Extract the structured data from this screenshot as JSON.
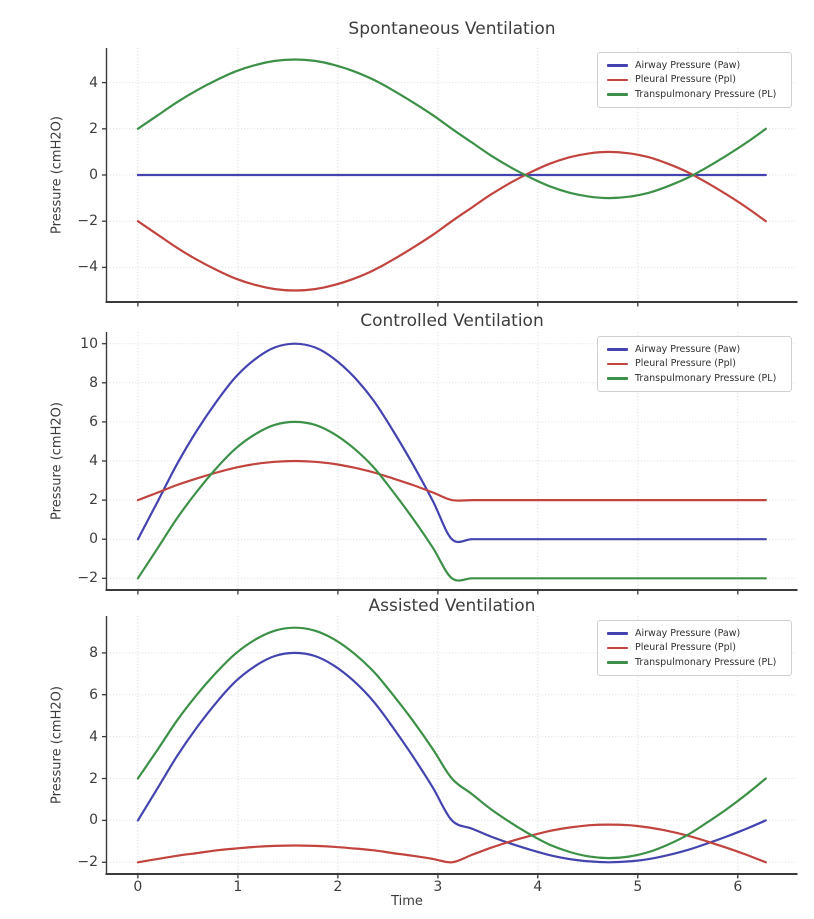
{
  "figure": {
    "background": "#ffffff",
    "xlabel": "Time"
  },
  "chart_data": [
    {
      "type": "line",
      "title": "Spontaneous Ventilation",
      "ylabel": "Pressure (cmH2O)",
      "xlabel": "Time",
      "xlim": [
        -0.314,
        6.597
      ],
      "ylim": [
        -5.5,
        5.5
      ],
      "xticks": [
        0,
        1,
        2,
        3,
        4,
        5,
        6
      ],
      "yticks": [
        -4,
        -2,
        0,
        2,
        4
      ],
      "show_x_tick_labels": false,
      "grid": true,
      "legend_position": "upper right",
      "x": [
        0,
        0.2,
        0.39,
        0.59,
        0.79,
        0.98,
        1.18,
        1.37,
        1.57,
        1.77,
        1.96,
        2.16,
        2.36,
        2.55,
        2.75,
        2.95,
        3.14,
        3.34,
        3.53,
        3.73,
        3.93,
        4.12,
        4.32,
        4.52,
        4.71,
        4.91,
        5.11,
        5.3,
        5.5,
        5.69,
        5.89,
        6.09,
        6.28
      ],
      "series": [
        {
          "name": "Airway Pressure (Paw)",
          "color": "#4444b0",
          "y": [
            0,
            0,
            0,
            0,
            0,
            0,
            0,
            0,
            0,
            0,
            0,
            0,
            0,
            0,
            0,
            0,
            0,
            0,
            0,
            0,
            0,
            0,
            0,
            0,
            0,
            0,
            0,
            0,
            0,
            0,
            0,
            0,
            0
          ]
        },
        {
          "name": "Pleural Pressure (Ppl)",
          "color": "#c2443f",
          "y": [
            -2,
            -2.59,
            -3.15,
            -3.67,
            -4.12,
            -4.49,
            -4.77,
            -4.94,
            -5,
            -4.94,
            -4.77,
            -4.49,
            -4.12,
            -3.67,
            -3.15,
            -2.59,
            -2,
            -1.41,
            -0.85,
            -0.33,
            0.12,
            0.49,
            0.77,
            0.94,
            1,
            0.94,
            0.77,
            0.49,
            0.12,
            -0.33,
            -0.85,
            -1.41,
            -2
          ]
        },
        {
          "name": "Transpulmonary Pressure (PL)",
          "color": "#3c9047",
          "y": [
            2,
            2.59,
            3.15,
            3.67,
            4.12,
            4.49,
            4.77,
            4.94,
            5,
            4.94,
            4.77,
            4.49,
            4.12,
            3.67,
            3.15,
            2.59,
            2,
            1.41,
            0.85,
            0.33,
            -0.12,
            -0.49,
            -0.77,
            -0.94,
            -1,
            -0.94,
            -0.77,
            -0.49,
            -0.12,
            0.33,
            0.85,
            1.41,
            2
          ]
        }
      ]
    },
    {
      "type": "line",
      "title": "Controlled Ventilation",
      "ylabel": "Pressure (cmH2O)",
      "xlabel": "Time",
      "xlim": [
        -0.314,
        6.597
      ],
      "ylim": [
        -2.6,
        10.6
      ],
      "xticks": [
        0,
        1,
        2,
        3,
        4,
        5,
        6
      ],
      "yticks": [
        -2,
        0,
        2,
        4,
        6,
        8,
        10
      ],
      "show_x_tick_labels": false,
      "grid": true,
      "legend_position": "upper right",
      "x": [
        0,
        0.2,
        0.39,
        0.59,
        0.79,
        0.98,
        1.18,
        1.37,
        1.57,
        1.77,
        1.96,
        2.16,
        2.36,
        2.55,
        2.75,
        2.95,
        3.14,
        3.34,
        3.53,
        3.73,
        3.93,
        4.12,
        4.32,
        4.52,
        4.71,
        4.91,
        5.11,
        5.3,
        5.5,
        5.69,
        5.89,
        6.09,
        6.28
      ],
      "series": [
        {
          "name": "Airway Pressure (Paw)",
          "color": "#4444b0",
          "y": [
            0,
            1.95,
            3.83,
            5.56,
            7.07,
            8.31,
            9.24,
            9.81,
            10,
            9.81,
            9.24,
            8.31,
            7.07,
            5.56,
            3.83,
            1.95,
            0,
            0,
            0,
            0,
            0,
            0,
            0,
            0,
            0,
            0,
            0,
            0,
            0,
            0,
            0,
            0,
            0
          ]
        },
        {
          "name": "Pleural Pressure (Ppl)",
          "color": "#c2443f",
          "y": [
            2,
            2.39,
            2.77,
            3.11,
            3.41,
            3.66,
            3.85,
            3.96,
            4,
            3.96,
            3.85,
            3.66,
            3.41,
            3.11,
            2.77,
            2.39,
            2,
            2,
            2,
            2,
            2,
            2,
            2,
            2,
            2,
            2,
            2,
            2,
            2,
            2,
            2,
            2,
            2
          ]
        },
        {
          "name": "Transpulmonary Pressure (PL)",
          "color": "#3c9047",
          "y": [
            -2,
            -0.44,
            1.06,
            2.44,
            3.66,
            4.65,
            5.39,
            5.85,
            6,
            5.85,
            5.39,
            4.65,
            3.66,
            2.44,
            1.06,
            -0.44,
            -2,
            -2,
            -2,
            -2,
            -2,
            -2,
            -2,
            -2,
            -2,
            -2,
            -2,
            -2,
            -2,
            -2,
            -2,
            -2,
            -2
          ]
        }
      ]
    },
    {
      "type": "line",
      "title": "Assisted Ventilation",
      "ylabel": "Pressure (cmH2O)",
      "xlabel": "Time",
      "xlim": [
        -0.314,
        6.597
      ],
      "ylim": [
        -2.56,
        9.76
      ],
      "xticks": [
        0,
        1,
        2,
        3,
        4,
        5,
        6
      ],
      "yticks": [
        -2,
        0,
        2,
        4,
        6,
        8
      ],
      "show_x_tick_labels": true,
      "grid": true,
      "legend_position": "upper right",
      "x": [
        0,
        0.2,
        0.39,
        0.59,
        0.79,
        0.98,
        1.18,
        1.37,
        1.57,
        1.77,
        1.96,
        2.16,
        2.36,
        2.55,
        2.75,
        2.95,
        3.14,
        3.34,
        3.53,
        3.73,
        3.93,
        4.12,
        4.32,
        4.52,
        4.71,
        4.91,
        5.11,
        5.3,
        5.5,
        5.69,
        5.89,
        6.09,
        6.28
      ],
      "series": [
        {
          "name": "Airway Pressure (Paw)",
          "color": "#4444b0",
          "y": [
            0,
            1.56,
            3.06,
            4.44,
            5.66,
            6.65,
            7.39,
            7.85,
            8,
            7.85,
            7.39,
            6.65,
            5.66,
            4.44,
            3.06,
            1.56,
            0,
            -0.39,
            -0.77,
            -1.11,
            -1.41,
            -1.66,
            -1.85,
            -1.96,
            -2,
            -1.96,
            -1.85,
            -1.66,
            -1.41,
            -1.11,
            -0.77,
            -0.39,
            0
          ]
        },
        {
          "name": "Pleural Pressure (Ppl)",
          "color": "#c2443f",
          "y": [
            -2,
            -1.84,
            -1.69,
            -1.56,
            -1.43,
            -1.34,
            -1.26,
            -1.22,
            -1.2,
            -1.22,
            -1.26,
            -1.34,
            -1.43,
            -1.56,
            -1.69,
            -1.84,
            -2,
            -1.65,
            -1.31,
            -1,
            -0.73,
            -0.5,
            -0.34,
            -0.23,
            -0.2,
            -0.23,
            -0.34,
            -0.5,
            -0.73,
            -1,
            -1.31,
            -1.65,
            -2
          ]
        },
        {
          "name": "Transpulmonary Pressure (PL)",
          "color": "#3c9047",
          "y": [
            2,
            3.4,
            4.76,
            6,
            7.09,
            7.98,
            8.65,
            9.06,
            9.2,
            9.06,
            8.65,
            7.98,
            7.09,
            6,
            4.76,
            3.4,
            2,
            1.26,
            0.54,
            -0.11,
            -0.69,
            -1.16,
            -1.51,
            -1.73,
            -1.8,
            -1.73,
            -1.51,
            -1.16,
            -0.69,
            -0.11,
            0.54,
            1.26,
            2
          ]
        }
      ]
    }
  ]
}
